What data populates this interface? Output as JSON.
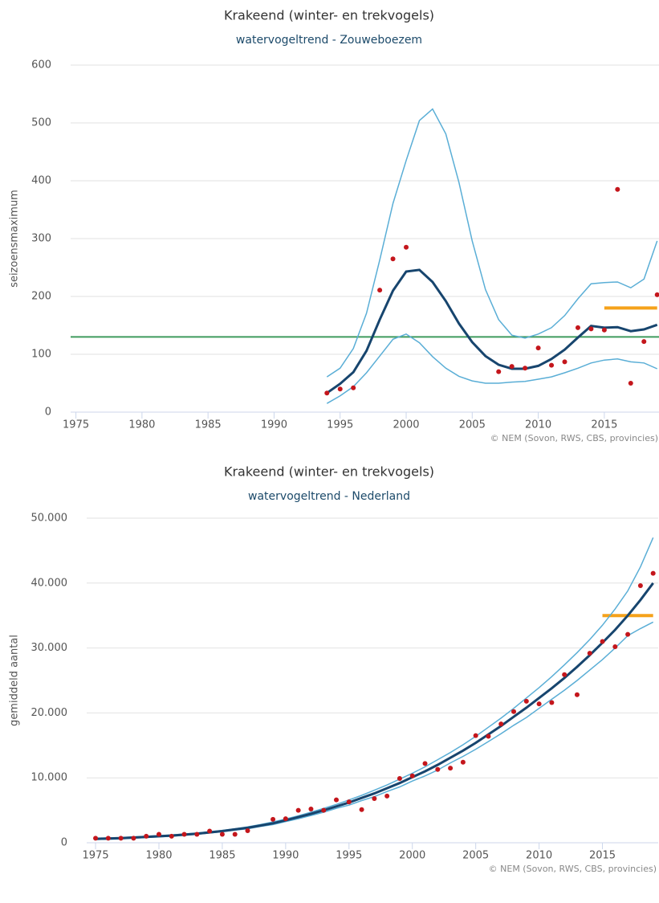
{
  "chart_data": [
    {
      "type": "line",
      "title": "Krakeend (winter- en trekvogels)",
      "subtitle": "watervogeltrend - Zouweboezem",
      "y_label": "seizoensmaximum",
      "credit": "© NEM (Sovon, RWS, CBS, provincies)",
      "x": [
        1994,
        1995,
        1996,
        1997,
        1998,
        1999,
        2000,
        2001,
        2002,
        2003,
        2004,
        2005,
        2006,
        2007,
        2008,
        2009,
        2010,
        2011,
        2012,
        2013,
        2014,
        2015,
        2016,
        2017,
        2018,
        2019
      ],
      "series": [
        {
          "style": "line",
          "color": "#5aaed6",
          "width": 1.5,
          "values": [
            61,
            76,
            110,
            171,
            263,
            361,
            435,
            504,
            524,
            481,
            397,
            296,
            212,
            160,
            133,
            128,
            135,
            146,
            167,
            196,
            222,
            224,
            225,
            215,
            230,
            296
          ]
        },
        {
          "style": "line",
          "color": "#5aaed6",
          "width": 1.5,
          "values": [
            15,
            28,
            44,
            68,
            97,
            126,
            135,
            120,
            96,
            76,
            62,
            54,
            50,
            50,
            52,
            53,
            57,
            61,
            68,
            76,
            85,
            90,
            92,
            87,
            85,
            75
          ]
        },
        {
          "style": "line",
          "color": "#17456e",
          "width": 3,
          "values": [
            33,
            49,
            69,
            106,
            160,
            210,
            243,
            246,
            225,
            192,
            153,
            121,
            97,
            82,
            75,
            75,
            80,
            92,
            108,
            129,
            149,
            146,
            147,
            140,
            143,
            151
          ]
        },
        {
          "style": "points",
          "color": "#c4161c",
          "values": [
            33,
            40,
            42,
            null,
            211,
            265,
            285,
            null,
            null,
            null,
            null,
            null,
            null,
            70,
            79,
            76,
            111,
            81,
            87,
            146,
            144,
            142,
            385,
            50,
            122,
            203
          ]
        }
      ],
      "hlines": [
        {
          "value": 130,
          "color": "#3f9b5d",
          "width": 2
        },
        {
          "value": 180,
          "x": [
            2015,
            2019
          ],
          "color": "#f5a21b",
          "width": 4
        }
      ],
      "xlim": [
        1974.6,
        2019.2
      ],
      "xticks": [
        1975,
        1980,
        1985,
        1990,
        1995,
        2000,
        2005,
        2010,
        2015
      ],
      "ylim": [
        0,
        600
      ],
      "yticks": [
        0,
        100,
        200,
        300,
        400,
        500,
        600
      ],
      "grid": true
    },
    {
      "type": "line",
      "title": "Krakeend (winter- en trekvogels)",
      "subtitle": "watervogeltrend - Nederland",
      "y_label": "gemiddeld aantal",
      "credit": "© NEM (Sovon, RWS, CBS, provincies)",
      "x": [
        1975,
        1976,
        1977,
        1978,
        1979,
        1980,
        1981,
        1982,
        1983,
        1984,
        1985,
        1986,
        1987,
        1988,
        1989,
        1990,
        1991,
        1992,
        1993,
        1994,
        1995,
        1996,
        1997,
        1998,
        1999,
        2000,
        2001,
        2002,
        2003,
        2004,
        2005,
        2006,
        2007,
        2008,
        2009,
        2010,
        2011,
        2012,
        2013,
        2014,
        2015,
        2016,
        2017,
        2018,
        2019
      ],
      "series": [
        {
          "style": "line",
          "color": "#5aaed6",
          "width": 1.5,
          "values": [
            700,
            750,
            800,
            900,
            1000,
            1100,
            1200,
            1350,
            1500,
            1700,
            1900,
            2150,
            2450,
            2800,
            3200,
            3650,
            4150,
            4700,
            5300,
            5900,
            6600,
            7300,
            8100,
            8900,
            9800,
            10700,
            11700,
            12800,
            13900,
            15100,
            16400,
            17800,
            19200,
            20700,
            22300,
            23900,
            25600,
            27400,
            29300,
            31300,
            33500,
            36000,
            38800,
            42500,
            47000
          ]
        },
        {
          "style": "line",
          "color": "#5aaed6",
          "width": 1.5,
          "values": [
            500,
            550,
            600,
            700,
            800,
            900,
            1000,
            1150,
            1300,
            1500,
            1700,
            1950,
            2150,
            2500,
            2800,
            3250,
            3700,
            4200,
            4700,
            5300,
            5800,
            6500,
            7100,
            7900,
            8600,
            9500,
            10300,
            11200,
            12300,
            13300,
            14400,
            15600,
            16800,
            18100,
            19300,
            20700,
            22100,
            23500,
            25000,
            26600,
            28200,
            30000,
            31900,
            33000,
            34000
          ]
        },
        {
          "style": "line",
          "color": "#17456e",
          "width": 3,
          "values": [
            600,
            650,
            700,
            800,
            900,
            1000,
            1100,
            1250,
            1400,
            1600,
            1800,
            2050,
            2300,
            2650,
            3000,
            3450,
            3950,
            4450,
            5000,
            5600,
            6200,
            6900,
            7600,
            8400,
            9200,
            10100,
            11000,
            12000,
            13100,
            14200,
            15400,
            16700,
            18000,
            19400,
            20800,
            22300,
            23800,
            25400,
            27100,
            28900,
            30800,
            32800,
            35000,
            37400,
            40000
          ]
        },
        {
          "style": "points",
          "color": "#c4161c",
          "values": [
            700,
            700,
            700,
            700,
            1000,
            1300,
            1000,
            1300,
            1300,
            1800,
            1300,
            1300,
            1850,
            null,
            3600,
            3700,
            5000,
            5200,
            5000,
            6600,
            6300,
            5100,
            6800,
            7200,
            9900,
            10300,
            12200,
            11300,
            11500,
            12400,
            16500,
            16400,
            18300,
            20200,
            21800,
            21400,
            21600,
            25900,
            22800,
            29200,
            31000,
            30200,
            32100,
            39600,
            41500
          ]
        }
      ],
      "hlines": [
        {
          "value": 35000,
          "x": [
            2015,
            2019
          ],
          "color": "#f5a21b",
          "width": 4
        }
      ],
      "xlim": [
        1974.3,
        2019.4
      ],
      "xticks": [
        1975,
        1980,
        1985,
        1990,
        1995,
        2000,
        2005,
        2010,
        2015
      ],
      "ylim": [
        0,
        50000
      ],
      "yticks": [
        0,
        {
          "value": 10000,
          "label": "10.000"
        },
        {
          "value": 20000,
          "label": "20.000"
        },
        {
          "value": 30000,
          "label": "30.000"
        },
        {
          "value": 40000,
          "label": "40.000"
        },
        {
          "value": 50000,
          "label": "50.000"
        }
      ],
      "grid": true
    }
  ]
}
